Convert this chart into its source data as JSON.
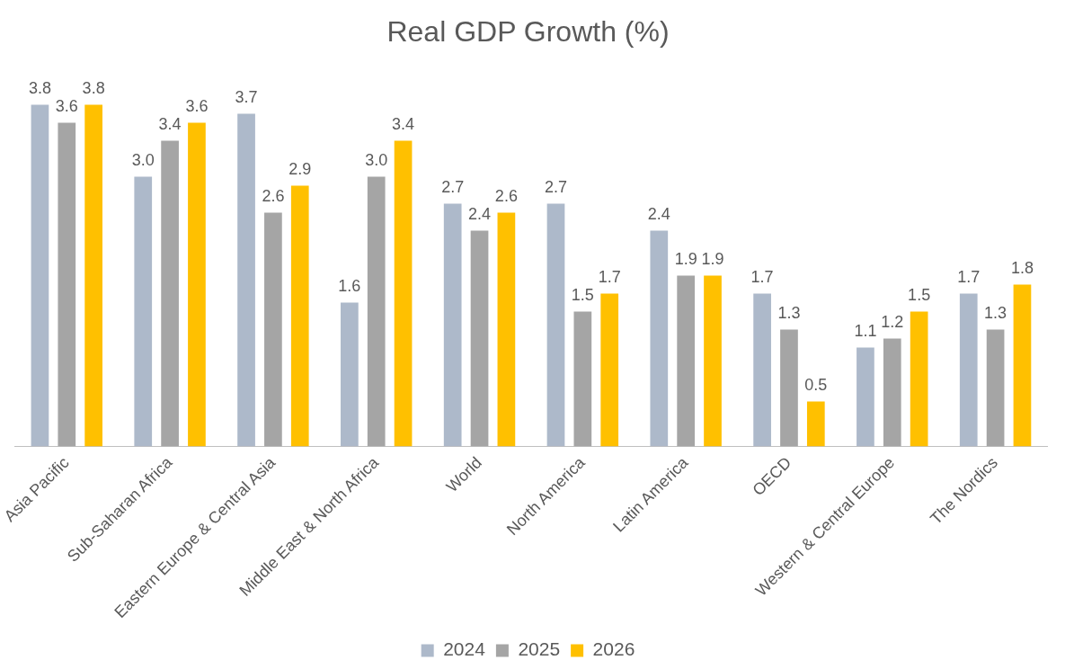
{
  "chart_data": {
    "type": "bar",
    "title": "Real GDP Growth (%)",
    "categories": [
      "Asia Pacific",
      "Sub-Saharan Africa",
      "Eastern Europe & Central Asia",
      "Middle East & North Africa",
      "World",
      "North America",
      "Latin America",
      "OECD",
      "Western & Central Europe",
      "The Nordics"
    ],
    "series": [
      {
        "name": "2024",
        "color": "#adb9ca",
        "values": [
          3.8,
          3.0,
          3.7,
          1.6,
          2.7,
          2.7,
          2.4,
          1.7,
          1.1,
          1.7
        ],
        "value_labels": [
          "3.8",
          "3.0",
          "3.7",
          "1.6",
          "2.7",
          "2.7",
          "2.4",
          "1.7",
          "1.1",
          "1.7"
        ]
      },
      {
        "name": "2025",
        "color": "#a5a5a5",
        "values": [
          3.6,
          3.4,
          2.6,
          3.0,
          2.4,
          1.5,
          1.9,
          1.3,
          1.2,
          1.3
        ],
        "value_labels": [
          "3.6",
          "3.4",
          "2.6",
          "3.0",
          "2.4",
          "1.5",
          "1.9",
          "1.3",
          "1.2",
          "1.3"
        ]
      },
      {
        "name": "2026",
        "color": "#ffc000",
        "values": [
          3.8,
          3.6,
          2.9,
          3.4,
          2.6,
          1.7,
          1.9,
          0.5,
          1.5,
          1.8
        ],
        "value_labels": [
          "3.8",
          "3.6",
          "2.9",
          "3.4",
          "2.6",
          "1.7",
          "1.9",
          "0.5",
          "1.5",
          "1.8"
        ]
      }
    ],
    "tick_labels": "x",
    "grid": false,
    "legend": "bottom"
  }
}
